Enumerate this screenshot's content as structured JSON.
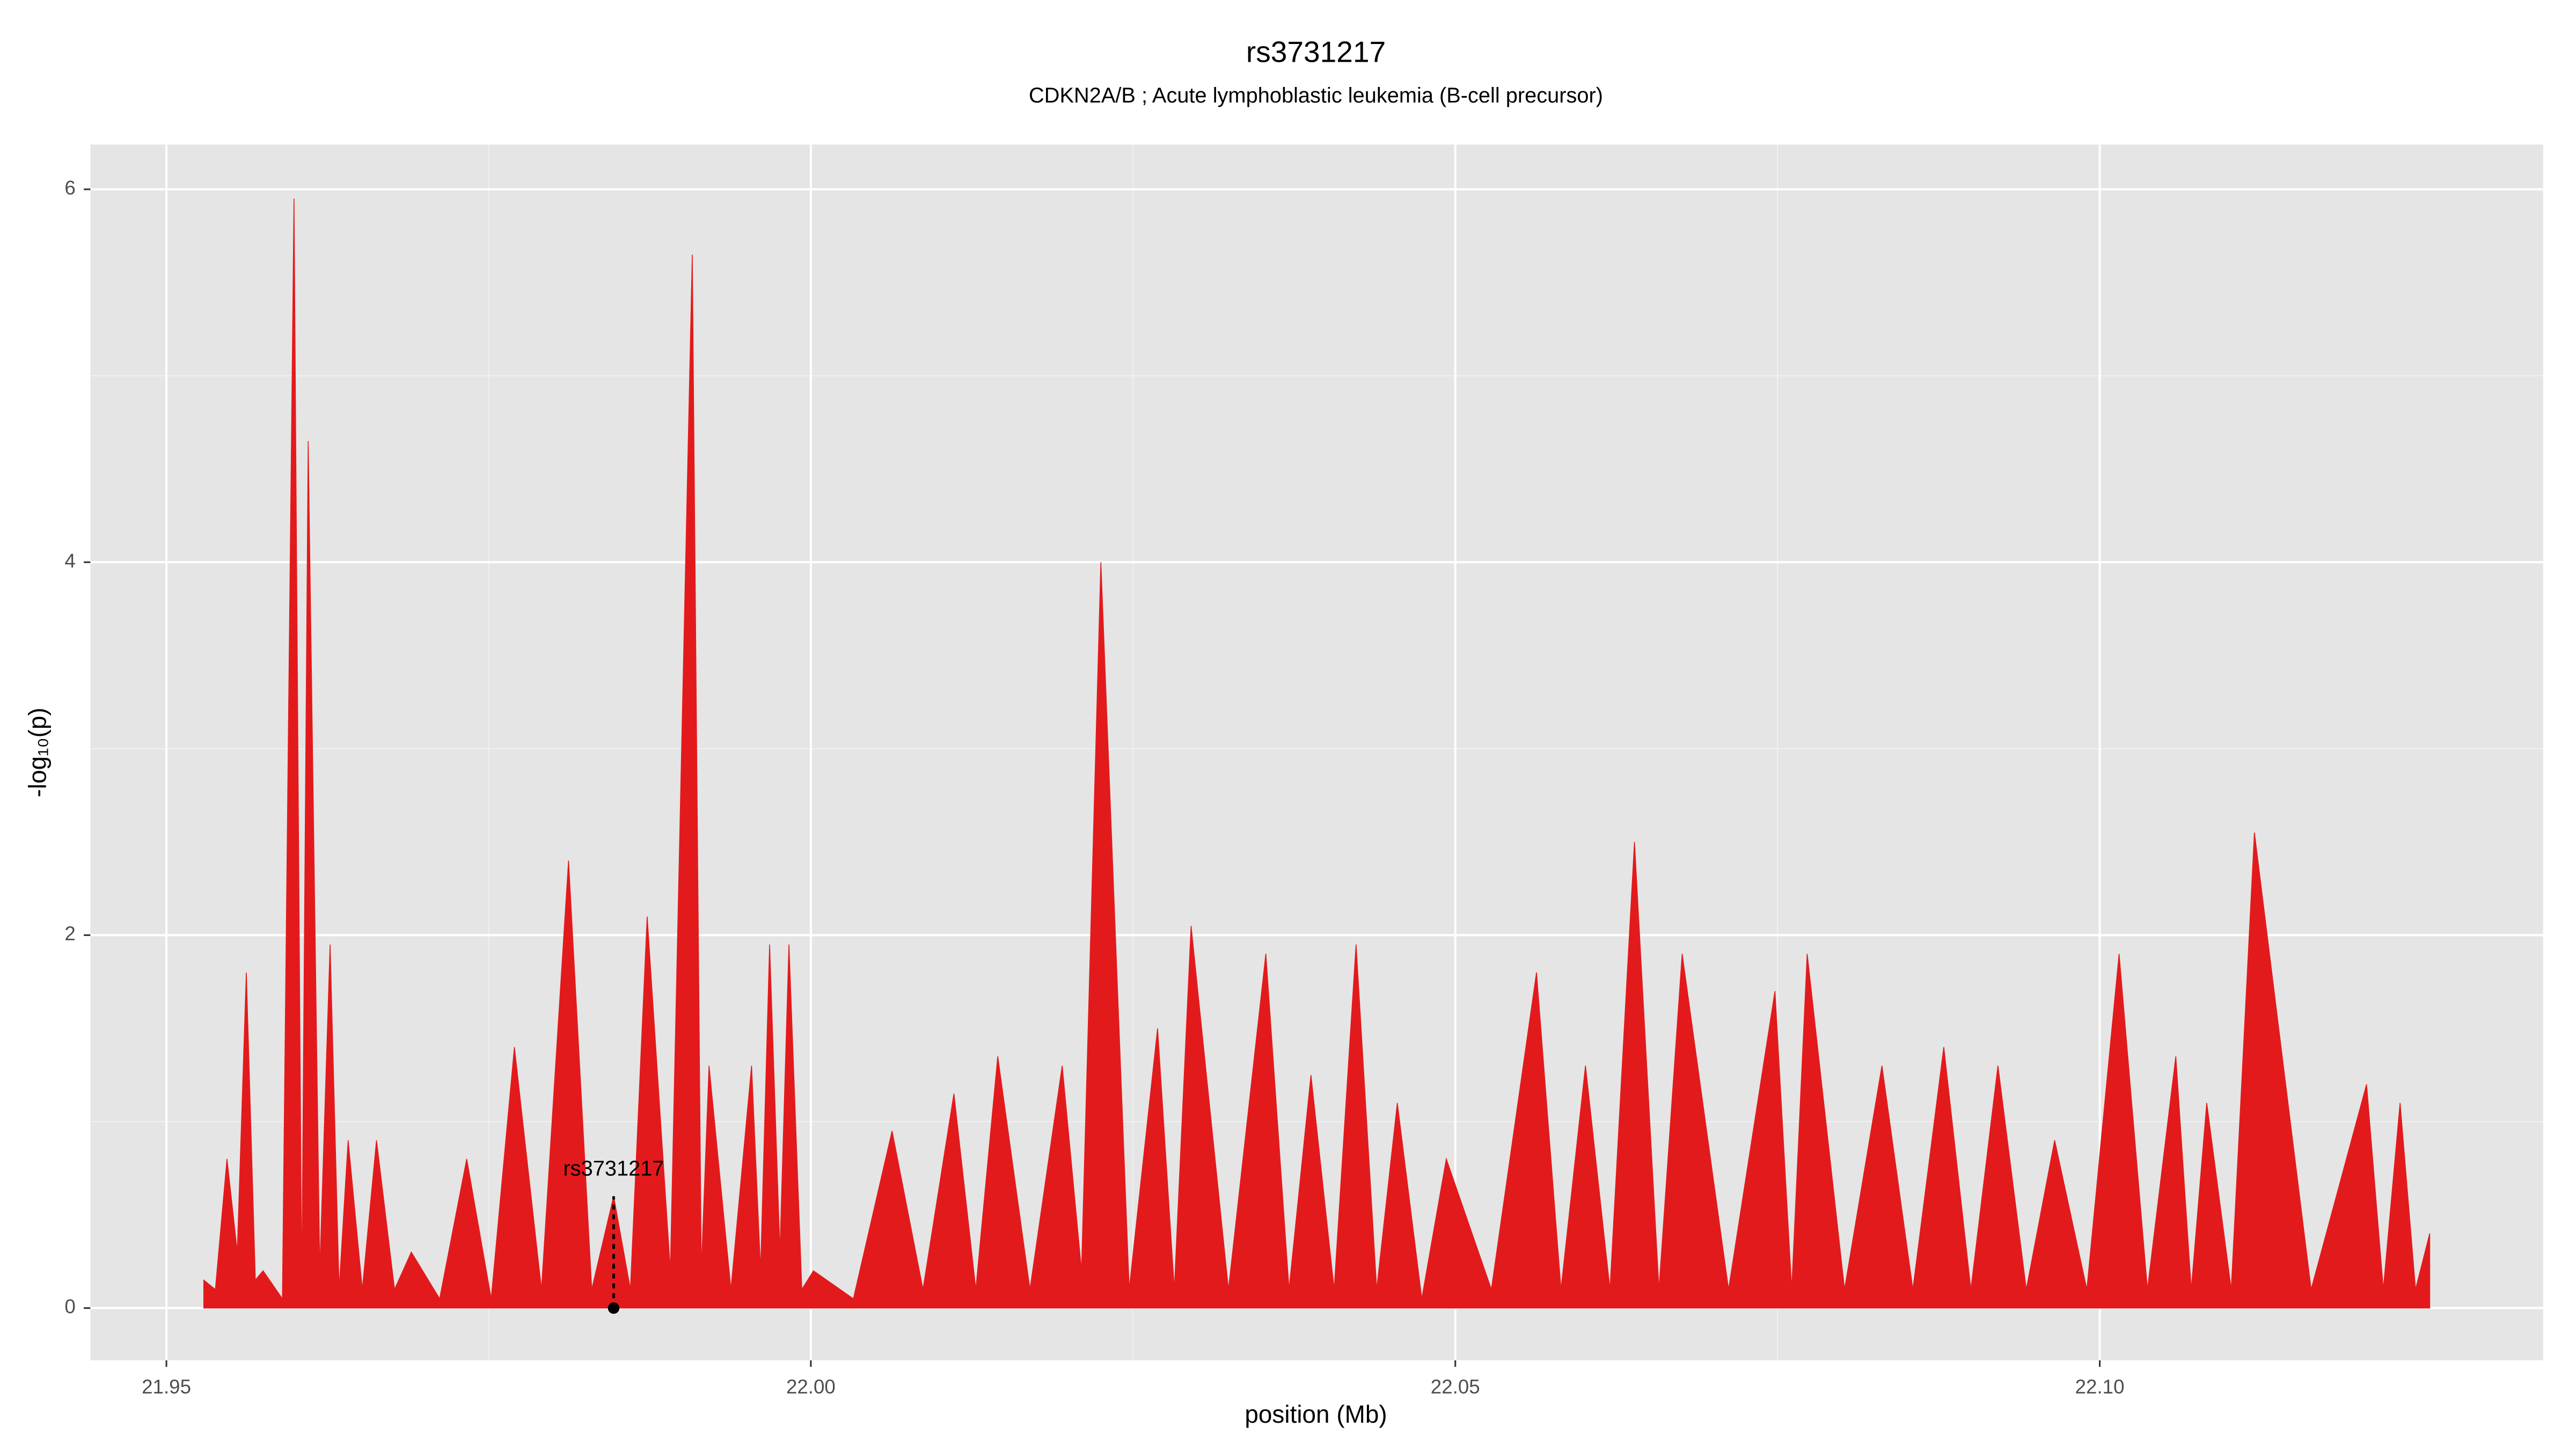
{
  "chart_data": {
    "type": "area",
    "title": "rs3731217",
    "subtitle": "CDKN2A/B ; Acute lymphoblastic leukemia (B-cell precursor)",
    "x_label": "position (Mb)",
    "y_label": "-log₁₀(p)",
    "x": [
      21.9529,
      21.9538,
      21.9547,
      21.9555,
      21.9562,
      21.9569,
      21.9575,
      21.959,
      21.9599,
      21.9605,
      21.961,
      21.9619,
      21.9627,
      21.9634,
      21.9641,
      21.9652,
      21.9663,
      21.9677,
      21.969,
      21.9712,
      21.9733,
      21.9752,
      21.977,
      21.9791,
      21.9812,
      21.983,
      21.9847,
      21.986,
      21.9873,
      21.9891,
      21.9908,
      21.9915,
      21.9921,
      21.9938,
      21.9954,
      21.9961,
      21.9968,
      21.9976,
      21.9983,
      21.9993,
      22.0002,
      22.0033,
      22.0063,
      22.0087,
      22.0111,
      22.0128,
      22.0145,
      22.017,
      22.0195,
      22.021,
      22.0225,
      22.0247,
      22.0269,
      22.0282,
      22.0295,
      22.0324,
      22.0353,
      22.0371,
      22.0388,
      22.0406,
      22.0423,
      22.0439,
      22.0455,
      22.0474,
      22.0493,
      22.0528,
      22.0563,
      22.0582,
      22.0601,
      22.062,
      22.0639,
      22.0658,
      22.0676,
      22.0712,
      22.0748,
      22.0761,
      22.0773,
      22.0802,
      22.0831,
      22.0855,
      22.0879,
      22.09,
      22.0921,
      22.0943,
      22.0965,
      22.099,
      22.1015,
      22.1037,
      22.1059,
      22.1071,
      22.1083,
      22.1102,
      22.112,
      22.1164,
      22.1207,
      22.122,
      22.1233,
      22.1245,
      22.1256
    ],
    "series": [
      {
        "color": "#e31a1c",
        "values": [
          0.15,
          0.1,
          0.8,
          0.3,
          1.8,
          0.15,
          0.2,
          0.05,
          5.95,
          0.1,
          4.65,
          0.2,
          1.95,
          0.1,
          0.9,
          0.1,
          0.9,
          0.1,
          0.3,
          0.05,
          0.8,
          0.05,
          1.4,
          0.1,
          2.4,
          0.1,
          0.6,
          0.1,
          2.1,
          0.2,
          5.65,
          0.2,
          1.3,
          0.1,
          1.3,
          0.2,
          1.95,
          0.3,
          1.95,
          0.1,
          0.2,
          0.05,
          0.95,
          0.1,
          1.15,
          0.1,
          1.35,
          0.1,
          1.3,
          0.2,
          4.0,
          0.1,
          1.5,
          0.1,
          2.05,
          0.1,
          1.9,
          0.1,
          1.25,
          0.1,
          1.95,
          0.1,
          1.1,
          0.05,
          0.8,
          0.1,
          1.8,
          0.1,
          1.3,
          0.1,
          2.5,
          0.1,
          1.9,
          0.1,
          1.7,
          0.1,
          1.9,
          0.1,
          1.3,
          0.1,
          1.4,
          0.1,
          1.3,
          0.1,
          0.9,
          0.1,
          1.9,
          0.1,
          1.35,
          0.1,
          1.1,
          0.1,
          2.55,
          0.1,
          1.2,
          0.1,
          1.1,
          0.1,
          0.4
        ]
      }
    ],
    "annotation": {
      "label": "rs3731217",
      "x": 21.9847,
      "y": 0.6
    },
    "xlim": [
      21.9441,
      22.1344
    ],
    "ylim": [
      -0.28,
      6.24
    ],
    "xticks": [
      21.95,
      {
        "value": 22,
        "label": "22.00"
      },
      22.05,
      {
        "value": 22.1,
        "label": "22.10"
      }
    ],
    "yticks": [
      0,
      2,
      4,
      6
    ],
    "grid": true
  }
}
